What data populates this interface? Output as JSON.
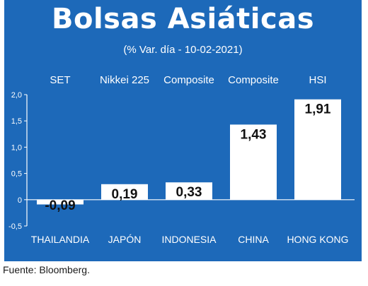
{
  "title": "Bolsas Asiáticas",
  "subtitle": "(% Var. día - 10-02-2021)",
  "source": "Fuente: Bloomberg.",
  "colors": {
    "background": "#1d69b9",
    "bar": "#ffffff",
    "text": "#ffffff",
    "value_text": "#111111"
  },
  "chart_data": {
    "type": "bar",
    "index_labels": [
      "SET",
      "Nikkei 225",
      "Composite",
      "Composite",
      "HSI"
    ],
    "categories": [
      "THAILANDIA",
      "JAPÓN",
      "INDONESIA",
      "CHINA",
      "HONG KONG"
    ],
    "values": [
      -0.09,
      0.19,
      0.33,
      1.43,
      1.91
    ],
    "value_labels": [
      "-0,09",
      "0,19",
      "0,33",
      "1,43",
      "1,91"
    ],
    "ylim": [
      -0.5,
      2.0
    ],
    "yticks": [
      2.0,
      1.5,
      1.0,
      0.5,
      0,
      -0.5
    ],
    "ytick_labels": [
      "2,0",
      "1,5",
      "1,0",
      "0,5",
      "0",
      "-0,5"
    ],
    "grid": false
  }
}
